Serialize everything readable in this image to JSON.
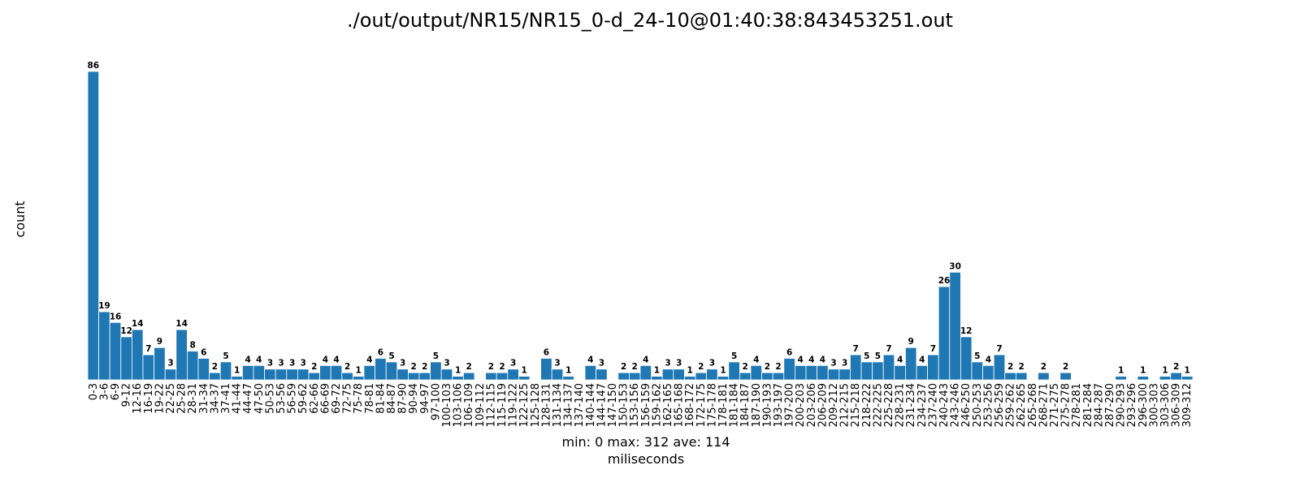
{
  "chart_data": {
    "type": "bar",
    "title": "./out/output/NR15/NR15_0-d_24-10@01:40:38:843453251.out",
    "xlabel": "miliseconds",
    "ylabel": "count",
    "stats": "min: 0    max: 312    ave: 114",
    "ylim": [
      0,
      90
    ],
    "grid": false,
    "bar_color": "#1f77b4",
    "categories": [
      "0-3",
      "3-6",
      "6-9",
      "9-12",
      "12-16",
      "16-19",
      "19-22",
      "22-25",
      "25-28",
      "28-31",
      "31-34",
      "34-37",
      "37-41",
      "41-44",
      "44-47",
      "47-50",
      "50-53",
      "53-56",
      "56-59",
      "59-62",
      "62-66",
      "66-69",
      "69-72",
      "72-75",
      "75-78",
      "78-81",
      "81-84",
      "84-87",
      "87-90",
      "90-94",
      "94-97",
      "97-100",
      "100-103",
      "103-106",
      "106-109",
      "109-112",
      "112-115",
      "115-119",
      "119-122",
      "122-125",
      "125-128",
      "128-131",
      "131-134",
      "134-137",
      "137-140",
      "140-144",
      "144-147",
      "147-150",
      "150-153",
      "153-156",
      "156-159",
      "159-162",
      "162-165",
      "165-168",
      "168-172",
      "172-175",
      "175-178",
      "178-181",
      "181-184",
      "184-187",
      "187-190",
      "190-193",
      "193-197",
      "197-200",
      "200-203",
      "203-206",
      "206-209",
      "209-212",
      "212-215",
      "215-218",
      "218-222",
      "222-225",
      "225-228",
      "228-231",
      "231-234",
      "234-237",
      "237-240",
      "240-243",
      "243-246",
      "246-250",
      "250-253",
      "253-256",
      "256-259",
      "259-262",
      "262-265",
      "265-268",
      "268-271",
      "271-275",
      "275-278",
      "278-281",
      "281-284",
      "284-287",
      "287-290",
      "290-293",
      "293-296",
      "296-300",
      "300-303",
      "303-306",
      "306-309",
      "309-312"
    ],
    "values": [
      86,
      19,
      16,
      12,
      14,
      7,
      9,
      3,
      14,
      8,
      6,
      2,
      5,
      1,
      4,
      4,
      3,
      3,
      3,
      3,
      2,
      4,
      4,
      2,
      1,
      4,
      6,
      5,
      3,
      2,
      2,
      5,
      3,
      1,
      2,
      0,
      2,
      2,
      3,
      1,
      0,
      6,
      3,
      1,
      0,
      4,
      3,
      0,
      2,
      2,
      4,
      1,
      3,
      3,
      1,
      2,
      3,
      1,
      5,
      2,
      4,
      2,
      2,
      6,
      4,
      4,
      4,
      3,
      3,
      7,
      5,
      5,
      7,
      4,
      9,
      4,
      7,
      26,
      30,
      12,
      5,
      4,
      7,
      2,
      2,
      0,
      2,
      0,
      2,
      0,
      0,
      0,
      0,
      1,
      0,
      1,
      0,
      1,
      2,
      1
    ]
  }
}
